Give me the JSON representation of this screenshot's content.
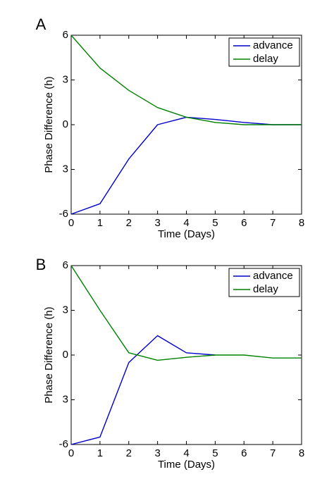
{
  "colors": {
    "advance": "#0000cc",
    "delay": "#008000",
    "axis": "#000000",
    "background": "#ffffff"
  },
  "chart_data": [
    {
      "panel_label": "A",
      "type": "line",
      "xlabel": "Time (Days)",
      "ylabel": "Phase Difference (h)",
      "xlim": [
        0,
        8
      ],
      "ylim": [
        -6,
        6
      ],
      "xticks": [
        "0",
        "1",
        "2",
        "3",
        "4",
        "5",
        "6",
        "7",
        "8"
      ],
      "yticks": [
        "6",
        "3",
        "0",
        "3",
        "-6"
      ],
      "grid": false,
      "legend_position": "top-right",
      "x": [
        0,
        1,
        2,
        3,
        4,
        5,
        6,
        7,
        8
      ],
      "series": [
        {
          "name": "advance",
          "color": "#0000cc",
          "values": [
            -6.0,
            -5.3,
            -2.3,
            0.0,
            0.5,
            0.35,
            0.15,
            0.0,
            0.0
          ]
        },
        {
          "name": "delay",
          "color": "#008000",
          "values": [
            6.0,
            3.8,
            2.3,
            1.15,
            0.5,
            0.15,
            0.0,
            0.0,
            0.0
          ]
        }
      ]
    },
    {
      "panel_label": "B",
      "type": "line",
      "xlabel": "Time (Days)",
      "ylabel": "Phase Difference (h)",
      "xlim": [
        0,
        8
      ],
      "ylim": [
        -6,
        6
      ],
      "xticks": [
        "0",
        "1",
        "2",
        "3",
        "4",
        "5",
        "6",
        "7",
        "8"
      ],
      "yticks": [
        "6",
        "3",
        "0",
        "3",
        "-6"
      ],
      "grid": false,
      "legend_position": "top-right",
      "x": [
        0,
        1,
        2,
        3,
        4,
        5,
        6,
        7,
        8
      ],
      "series": [
        {
          "name": "advance",
          "color": "#0000cc",
          "values": [
            -6.0,
            -5.5,
            -0.5,
            1.3,
            0.15,
            0.0,
            null,
            null,
            null
          ]
        },
        {
          "name": "delay",
          "color": "#008000",
          "values": [
            6.0,
            3.0,
            0.15,
            -0.35,
            -0.15,
            0.0,
            0.0,
            -0.2,
            -0.2
          ]
        }
      ]
    }
  ]
}
